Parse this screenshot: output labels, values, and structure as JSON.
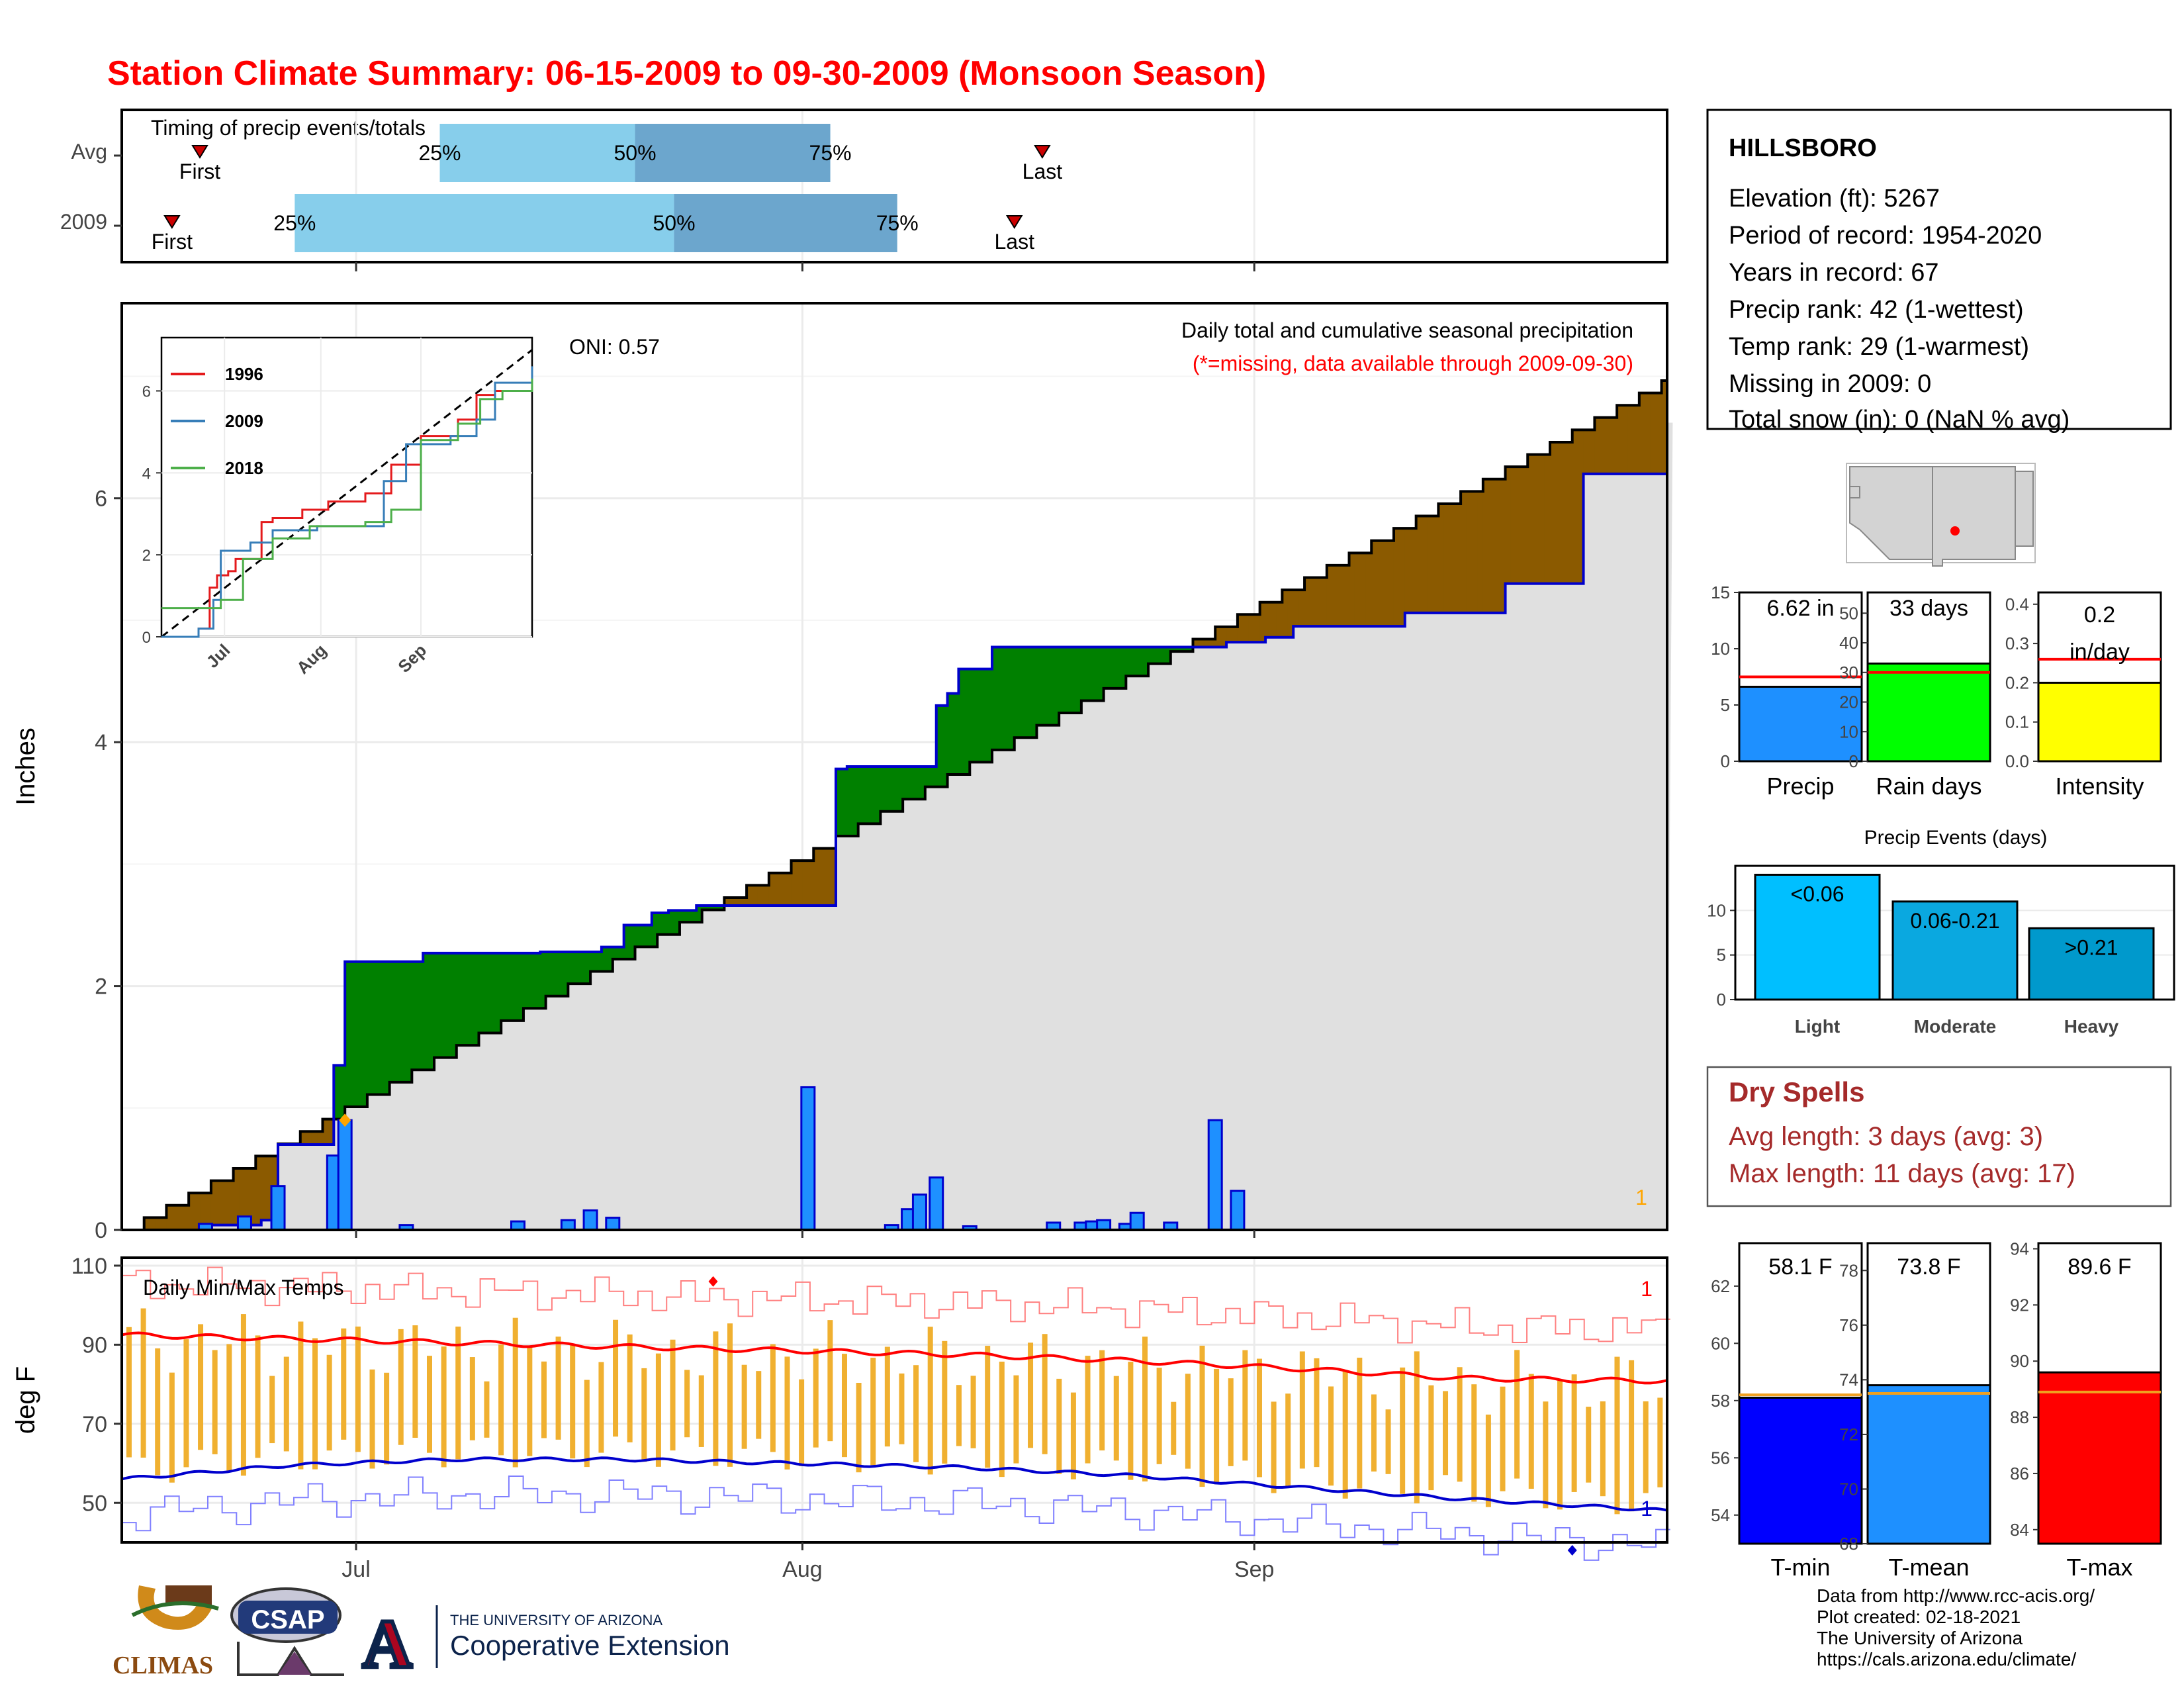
{
  "title": "Station Climate Summary: 06-15-2009 to 09-30-2009 (Monsoon Season)",
  "colors": {
    "title": "#ff0000",
    "dry_spell": "#a52a2a",
    "brown": "#8b5a00",
    "green": "#008000",
    "grey_fill": "#e0e0e0",
    "blue_line": "#0000cd",
    "bar_blue": "#1e90ff",
    "light_bar": "#87ceeb",
    "mid_bar": "#6ca6cd",
    "temp_bar": "#f0b030"
  },
  "timing": {
    "label": "Timing of precip events/totals",
    "rows": [
      {
        "name": "Avg",
        "first_label": "First",
        "last_label": "Last",
        "first_day": 14,
        "last_day": 165,
        "q25": 57,
        "q50": 92,
        "q75": 127,
        "p25": "25%",
        "p50": "50%",
        "p75": "75%"
      },
      {
        "name": "2009",
        "first_day": 9,
        "last_day": 160,
        "first_label": "First",
        "last_label": "Last",
        "q25": 31,
        "q50": 99,
        "q75": 139,
        "p25": "25%",
        "p50": "50%",
        "p75": "75%"
      }
    ]
  },
  "precip_panel": {
    "title": "Daily total and cumulative seasonal precipitation",
    "subtitle": "(*=missing, data available through 2009-09-30)",
    "oni": "ONI: 0.57",
    "ylabel": "Inches",
    "yticks": [
      "0",
      "2",
      "4",
      "6"
    ],
    "corner_note": "1",
    "month_ticks": [
      "Jul",
      "Aug",
      "Sep"
    ]
  },
  "inset": {
    "legend": [
      "1996",
      "2009",
      "2018"
    ],
    "yticks": [
      "0",
      "2",
      "4",
      "6"
    ],
    "xticks": [
      "Jul",
      "Aug",
      "Sep"
    ]
  },
  "temp_panel": {
    "title": "Daily Min/Max Temps",
    "ylabel": "deg F",
    "yticks": [
      "50",
      "70",
      "90",
      "110"
    ],
    "xticks": [
      "Jul",
      "Aug",
      "Sep"
    ],
    "note_top": "1",
    "note_bottom": "1"
  },
  "station": {
    "name": "HILLSBORO",
    "lines": [
      "Elevation (ft): 5267",
      "Period of record: 1954-2020",
      "Years in record: 67",
      "Precip rank: 42 (1-wettest)",
      "Temp rank: 29 (1-warmest)",
      "Missing in 2009: 0",
      "Total snow (in): 0 (NaN % avg)"
    ]
  },
  "summary_bars": [
    {
      "label": "Precip",
      "value_text": "6.62 in",
      "value": 6.62,
      "avg": 7.5,
      "ymax": 15,
      "ticks": [
        "0",
        "5",
        "10",
        "15"
      ],
      "color": "#1e90ff"
    },
    {
      "label": "Rain days",
      "value_text": "33 days",
      "value": 33,
      "avg": 30,
      "ymax": 57,
      "ticks": [
        "0",
        "10",
        "20",
        "30",
        "40",
        "50"
      ],
      "color": "#00ff00"
    },
    {
      "label": "Intensity",
      "value_text": "0.2 in/day",
      "value_lines": [
        "0.2",
        "in/day"
      ],
      "value": 0.2,
      "avg": 0.26,
      "ymax": 0.43,
      "ticks": [
        "0.0",
        "0.1",
        "0.2",
        "0.3",
        "0.4"
      ],
      "color": "#ffff00"
    }
  ],
  "events": {
    "title": "Precip Events (days)",
    "ticks": [
      "0",
      "5",
      "10"
    ],
    "bars": [
      {
        "label": "Light",
        "range": "<0.06",
        "value": 14,
        "color": "#00bfff"
      },
      {
        "label": "Moderate",
        "range": "0.06-0.21",
        "value": 11,
        "color": "#0aa8e0"
      },
      {
        "label": "Heavy",
        "range": ">0.21",
        "value": 8,
        "color": "#0099cc"
      }
    ]
  },
  "dry_spells": {
    "title": "Dry Spells",
    "avg_line": "Avg length: 3 days (avg: 3)",
    "max_line": "Max length: 11 days (avg: 17)"
  },
  "temp_bars": [
    {
      "label": "T-min",
      "value_text": "58.1 F",
      "value": 58.1,
      "avg": 58.2,
      "ymin": 53,
      "ymax": 63.5,
      "ticks": [
        "54",
        "56",
        "58",
        "60",
        "62"
      ],
      "tickvals": [
        54,
        56,
        58,
        60,
        62
      ],
      "color": "#0000ff"
    },
    {
      "label": "T-mean",
      "value_text": "73.8 F",
      "value": 73.8,
      "avg": 73.5,
      "ymin": 68,
      "ymax": 79,
      "ticks": [
        "68",
        "70",
        "72",
        "74",
        "76",
        "78"
      ],
      "tickvals": [
        68,
        70,
        72,
        74,
        76,
        78
      ],
      "color": "#1e90ff"
    },
    {
      "label": "T-max",
      "value_text": "89.6 F",
      "value": 89.6,
      "avg": 88.9,
      "ymin": 83.5,
      "ymax": 94.2,
      "ticks": [
        "84",
        "86",
        "88",
        "90",
        "92",
        "94"
      ],
      "tickvals": [
        84,
        86,
        88,
        90,
        92,
        94
      ],
      "color": "#ff0000"
    }
  ],
  "credits": [
    "Data from http://www.rcc-acis.org/",
    "Plot created: 02-18-2021",
    "The University of Arizona",
    "https://cals.arizona.edu/climate/"
  ],
  "logos": {
    "climas": "CLIMAS",
    "csap": "CSAP",
    "ua_top": "THE UNIVERSITY OF ARIZONA",
    "ua_bottom": "Cooperative Extension",
    "ua_letter": "A"
  },
  "chart_data": {
    "type": "area",
    "x_unit": "day of season (0 = 06-15)",
    "cumulative_2009_steps": [
      [
        0,
        0
      ],
      [
        16,
        0.04
      ],
      [
        25,
        0.08
      ],
      [
        28,
        0.7
      ],
      [
        38,
        1.35
      ],
      [
        40,
        2.2
      ],
      [
        54,
        2.27
      ],
      [
        75,
        2.28
      ],
      [
        86,
        2.32
      ],
      [
        90,
        2.5
      ],
      [
        95,
        2.6
      ],
      [
        98,
        2.62
      ],
      [
        103,
        2.66
      ],
      [
        128,
        3.78
      ],
      [
        130,
        3.8
      ],
      [
        146,
        4.3
      ],
      [
        148,
        4.4
      ],
      [
        150,
        4.6
      ],
      [
        156,
        4.78
      ],
      [
        198,
        4.82
      ],
      [
        205,
        4.86
      ],
      [
        210,
        4.95
      ],
      [
        230,
        5.06
      ],
      [
        248,
        5.3
      ],
      [
        262,
        6.2
      ],
      [
        277,
        6.62
      ]
    ],
    "cumulative_avg_start": 0,
    "cumulative_avg_end": 6.99,
    "daily_precip": [
      [
        15,
        0.05
      ],
      [
        22,
        0.11
      ],
      [
        28,
        0.36
      ],
      [
        38,
        0.61
      ],
      [
        40,
        0.9
      ],
      [
        51,
        0.04
      ],
      [
        71,
        0.07
      ],
      [
        80,
        0.08
      ],
      [
        84,
        0.16
      ],
      [
        88,
        0.1
      ],
      [
        123,
        1.17
      ],
      [
        138,
        0.04
      ],
      [
        141,
        0.17
      ],
      [
        143,
        0.29
      ],
      [
        146,
        0.43
      ],
      [
        152,
        0.03
      ],
      [
        167,
        0.06
      ],
      [
        172,
        0.06
      ],
      [
        174,
        0.07
      ],
      [
        176,
        0.08
      ],
      [
        180,
        0.05
      ],
      [
        182,
        0.14
      ],
      [
        188,
        0.06
      ],
      [
        196,
        0.9
      ],
      [
        200,
        0.32
      ]
    ],
    "tmax_avg": [
      [
        0,
        92.5
      ],
      [
        30,
        91.5
      ],
      [
        60,
        90.5
      ],
      [
        90,
        89.5
      ],
      [
        120,
        88.5
      ],
      [
        150,
        87.5
      ],
      [
        180,
        86
      ],
      [
        210,
        84
      ],
      [
        240,
        81.5
      ],
      [
        277,
        80.8
      ]
    ],
    "tmin_avg": [
      [
        0,
        56
      ],
      [
        30,
        59.5
      ],
      [
        60,
        61
      ],
      [
        90,
        61
      ],
      [
        120,
        60
      ],
      [
        150,
        59
      ],
      [
        180,
        57
      ],
      [
        210,
        54
      ],
      [
        240,
        51
      ],
      [
        277,
        48
      ]
    ],
    "y_range_precip": [
      0,
      7.6
    ],
    "y_range_temp": [
      40,
      110
    ]
  }
}
